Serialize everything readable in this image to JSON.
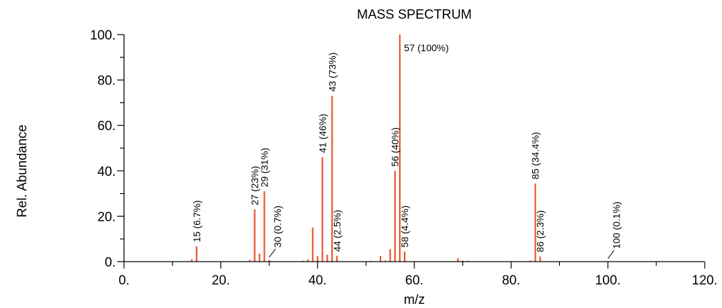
{
  "chart_data": {
    "type": "bar",
    "title": "MASS SPECTRUM",
    "xlabel": "m/z",
    "ylabel": "Rel. Abundance",
    "xlim": [
      0,
      120
    ],
    "ylim": [
      0,
      100
    ],
    "x_ticks": [
      "0.",
      "20.",
      "40.",
      "60.",
      "80.",
      "100.",
      "120."
    ],
    "y_ticks": [
      "0.",
      "20.",
      "40.",
      "60.",
      "80.",
      "100."
    ],
    "x_tick_values": [
      0,
      20,
      40,
      60,
      80,
      100,
      120
    ],
    "y_tick_values": [
      0,
      20,
      40,
      60,
      80,
      100
    ],
    "grid": false,
    "color": "#e8542c",
    "peaks": [
      {
        "mz": 14,
        "value": 1.0
      },
      {
        "mz": 15,
        "value": 6.7
      },
      {
        "mz": 26,
        "value": 0.8
      },
      {
        "mz": 27,
        "value": 23
      },
      {
        "mz": 28,
        "value": 3.5
      },
      {
        "mz": 29,
        "value": 31
      },
      {
        "mz": 30,
        "value": 0.7
      },
      {
        "mz": 37,
        "value": 0.4
      },
      {
        "mz": 38,
        "value": 1.0
      },
      {
        "mz": 39,
        "value": 15
      },
      {
        "mz": 40,
        "value": 2.5
      },
      {
        "mz": 41,
        "value": 46
      },
      {
        "mz": 42,
        "value": 3.0
      },
      {
        "mz": 43,
        "value": 73
      },
      {
        "mz": 44,
        "value": 2.5
      },
      {
        "mz": 51,
        "value": 0.4
      },
      {
        "mz": 53,
        "value": 2.5
      },
      {
        "mz": 54,
        "value": 0.5
      },
      {
        "mz": 55,
        "value": 5.5
      },
      {
        "mz": 56,
        "value": 40
      },
      {
        "mz": 57,
        "value": 100
      },
      {
        "mz": 58,
        "value": 4.4
      },
      {
        "mz": 69,
        "value": 1.5
      },
      {
        "mz": 70,
        "value": 0.4
      },
      {
        "mz": 71,
        "value": 0.4
      },
      {
        "mz": 84,
        "value": 0.5
      },
      {
        "mz": 85,
        "value": 34.4
      },
      {
        "mz": 86,
        "value": 2.3
      },
      {
        "mz": 100,
        "value": 0.1
      }
    ],
    "annotations": [
      {
        "mz": 15,
        "value": 6.7,
        "text": "15 (6.7%)",
        "rotated": true
      },
      {
        "mz": 27,
        "value": 23,
        "text": "27 (23%)",
        "rotated": true
      },
      {
        "mz": 29,
        "value": 31,
        "text": "29 (31%)",
        "rotated": true
      },
      {
        "mz": 30,
        "value": 0.7,
        "text": "30 (0.7%)",
        "rotated": true,
        "leader": true
      },
      {
        "mz": 41,
        "value": 46,
        "text": "41 (46%)",
        "rotated": true
      },
      {
        "mz": 43,
        "value": 73,
        "text": "43 (73%)",
        "rotated": true
      },
      {
        "mz": 44,
        "value": 2.5,
        "text": "44 (2.5%)",
        "rotated": true
      },
      {
        "mz": 56,
        "value": 40,
        "text": "56 (40%)",
        "rotated": true
      },
      {
        "mz": 57,
        "value": 100,
        "text": "57 (100%)",
        "rotated": false
      },
      {
        "mz": 58,
        "value": 4.4,
        "text": "58 (4.4%)",
        "rotated": true
      },
      {
        "mz": 85,
        "value": 34.4,
        "text": "85 (34.4%)",
        "rotated": true
      },
      {
        "mz": 86,
        "value": 2.3,
        "text": "86 (2.3%)",
        "rotated": true
      },
      {
        "mz": 100,
        "value": 0.1,
        "text": "100 (0.1%)",
        "rotated": true,
        "leader": true
      }
    ]
  }
}
